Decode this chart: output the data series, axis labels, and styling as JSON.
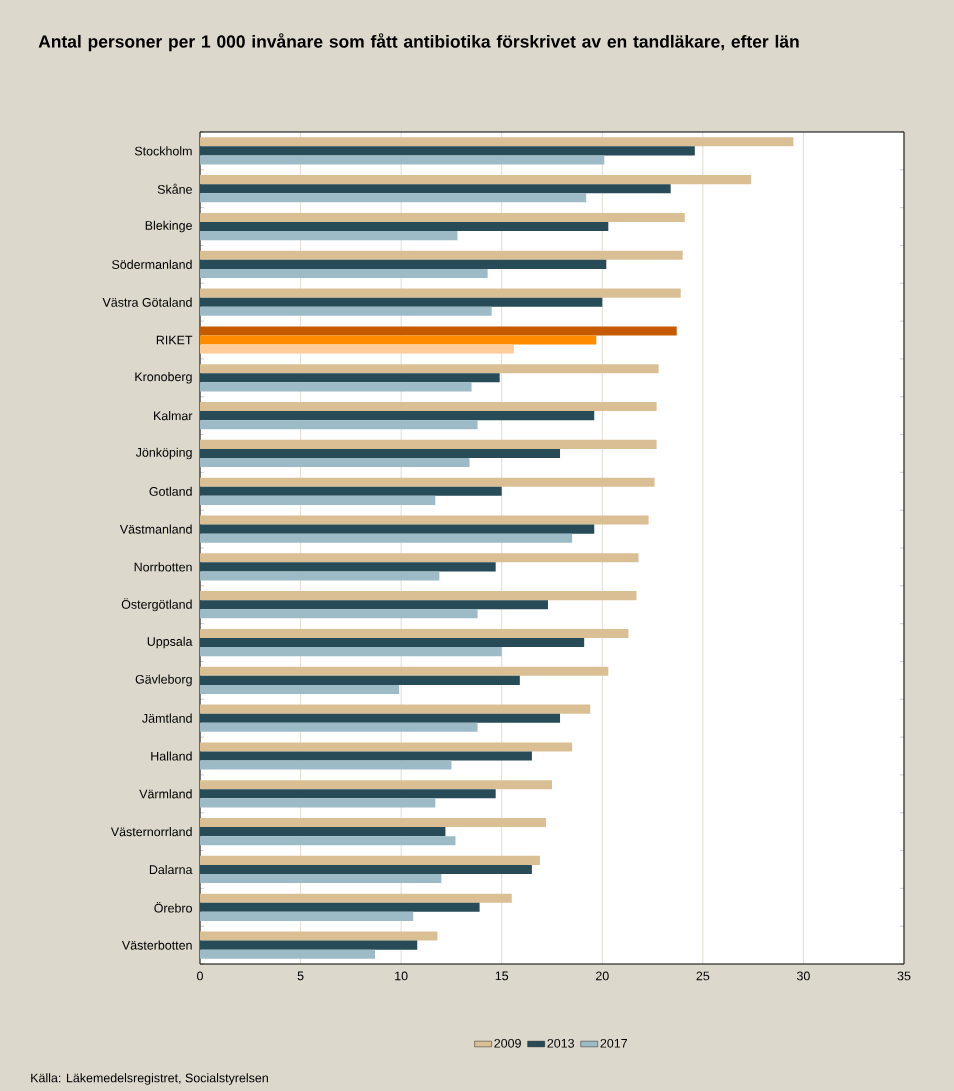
{
  "chart_data": {
    "type": "bar",
    "orientation": "horizontal",
    "title": "Antal personer per 1 000 invånare som fått antibiotika förskrivet av en tandläkare, efter län",
    "categories": [
      "Stockholm",
      "Skåne",
      "Blekinge",
      "Södermanland",
      "Västra Götaland",
      "RIKET",
      "Kronoberg",
      "Kalmar",
      "Jönköping",
      "Gotland",
      "Västmanland",
      "Norrbotten",
      "Östergötland",
      "Uppsala",
      "Gävleborg",
      "Jämtland",
      "Halland",
      "Värmland",
      "Västernorrland",
      "Dalarna",
      "Örebro",
      "Västerbotten"
    ],
    "series": [
      {
        "name": "2009",
        "color": "#dbbf94",
        "colors": [
          "#dbbf94",
          "#dbbf94",
          "#dbbf94",
          "#dbbf94",
          "#dbbf94",
          "#c55a00",
          "#dbbf94",
          "#dbbf94",
          "#dbbf94",
          "#dbbf94",
          "#dbbf94",
          "#dbbf94",
          "#dbbf94",
          "#dbbf94",
          "#dbbf94",
          "#dbbf94",
          "#dbbf94",
          "#dbbf94",
          "#dbbf94",
          "#dbbf94",
          "#dbbf94",
          "#dbbf94"
        ],
        "values": [
          29.5,
          27.4,
          24.1,
          24.0,
          23.9,
          23.7,
          22.8,
          22.7,
          22.7,
          22.6,
          22.3,
          21.8,
          21.7,
          21.3,
          20.3,
          19.4,
          18.5,
          17.5,
          17.2,
          16.9,
          15.5,
          11.8
        ]
      },
      {
        "name": "2013",
        "color": "#274b57",
        "colors": [
          "#274b57",
          "#274b57",
          "#274b57",
          "#274b57",
          "#274b57",
          "#ff8c00",
          "#274b57",
          "#274b57",
          "#274b57",
          "#274b57",
          "#274b57",
          "#274b57",
          "#274b57",
          "#274b57",
          "#274b57",
          "#274b57",
          "#274b57",
          "#274b57",
          "#274b57",
          "#274b57",
          "#274b57",
          "#274b57"
        ],
        "values": [
          24.6,
          23.4,
          20.3,
          20.2,
          20.0,
          19.7,
          14.9,
          19.6,
          17.9,
          15.0,
          19.6,
          14.7,
          17.3,
          19.1,
          15.9,
          17.9,
          16.5,
          14.7,
          12.2,
          16.5,
          13.9,
          10.8
        ]
      },
      {
        "name": "2017",
        "color": "#9dbbc6",
        "colors": [
          "#9dbbc6",
          "#9dbbc6",
          "#9dbbc6",
          "#9dbbc6",
          "#9dbbc6",
          "#ffcc99",
          "#9dbbc6",
          "#9dbbc6",
          "#9dbbc6",
          "#9dbbc6",
          "#9dbbc6",
          "#9dbbc6",
          "#9dbbc6",
          "#9dbbc6",
          "#9dbbc6",
          "#9dbbc6",
          "#9dbbc6",
          "#9dbbc6",
          "#9dbbc6",
          "#9dbbc6",
          "#9dbbc6",
          "#9dbbc6"
        ],
        "values": [
          20.1,
          19.2,
          12.8,
          14.3,
          14.5,
          15.6,
          13.5,
          13.8,
          13.4,
          11.7,
          18.5,
          11.9,
          13.8,
          15.0,
          9.9,
          13.8,
          12.5,
          11.7,
          12.7,
          12.0,
          10.6,
          8.7
        ]
      }
    ],
    "xlim": [
      0,
      35
    ],
    "xticks": [
      0,
      5,
      10,
      15,
      20,
      25,
      30,
      35
    ],
    "grid": "x",
    "legend": "bottom",
    "annotations": [
      "Källa: Läkemedelsregistret, Socialstyrelsen"
    ]
  }
}
